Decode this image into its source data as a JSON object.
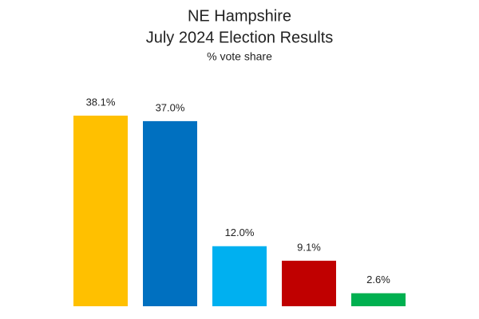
{
  "chart_data": {
    "type": "bar",
    "title": "NE Hampshire",
    "subtitle": "July 2024 Election Results",
    "annotation": "% vote share",
    "categories": [
      null,
      null,
      null,
      null,
      null
    ],
    "values": [
      38.1,
      37.0,
      12.0,
      9.1,
      2.6
    ],
    "value_labels": [
      "38.1%",
      "37.0%",
      "12.0%",
      "9.1%",
      "2.6%"
    ],
    "colors": [
      "#FFC000",
      "#0070C0",
      "#00B0F0",
      "#C00000",
      "#00B050"
    ],
    "grid": false
  }
}
